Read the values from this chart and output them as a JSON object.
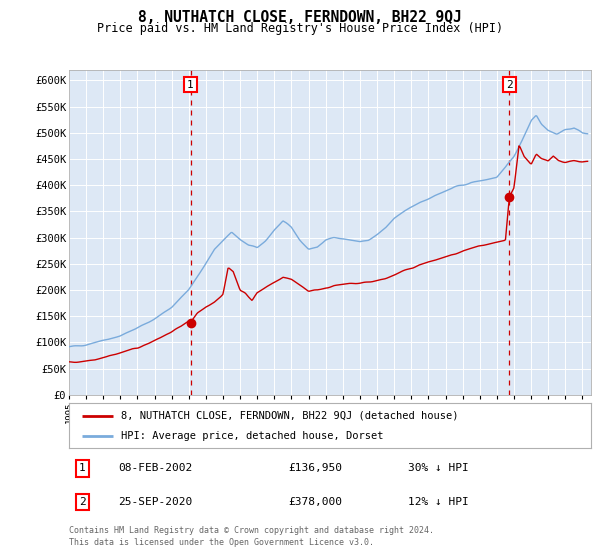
{
  "title": "8, NUTHATCH CLOSE, FERNDOWN, BH22 9QJ",
  "subtitle": "Price paid vs. HM Land Registry's House Price Index (HPI)",
  "legend_line1": "8, NUTHATCH CLOSE, FERNDOWN, BH22 9QJ (detached house)",
  "legend_line2": "HPI: Average price, detached house, Dorset",
  "annotation1": {
    "label": "1",
    "date_label": "08-FEB-2002",
    "price_label": "£136,950",
    "pct_label": "30% ↓ HPI",
    "year": 2002.1,
    "price": 136950
  },
  "annotation2": {
    "label": "2",
    "date_label": "25-SEP-2020",
    "price_label": "£378,000",
    "pct_label": "12% ↓ HPI",
    "year": 2020.73,
    "price": 378000
  },
  "footer1": "Contains HM Land Registry data © Crown copyright and database right 2024.",
  "footer2": "This data is licensed under the Open Government Licence v3.0.",
  "ylim": [
    0,
    620000
  ],
  "yticks": [
    0,
    50000,
    100000,
    150000,
    200000,
    250000,
    300000,
    350000,
    400000,
    450000,
    500000,
    550000,
    600000
  ],
  "ytick_labels": [
    "£0",
    "£50K",
    "£100K",
    "£150K",
    "£200K",
    "£250K",
    "£300K",
    "£350K",
    "£400K",
    "£450K",
    "£500K",
    "£550K",
    "£600K"
  ],
  "hpi_color": "#7aabdc",
  "price_color": "#cc0000",
  "bg_color": "#dde8f5",
  "dashed_line_color": "#cc0000",
  "marker_color": "#cc0000",
  "grid_color": "#ffffff",
  "border_color": "#b0b0b0"
}
